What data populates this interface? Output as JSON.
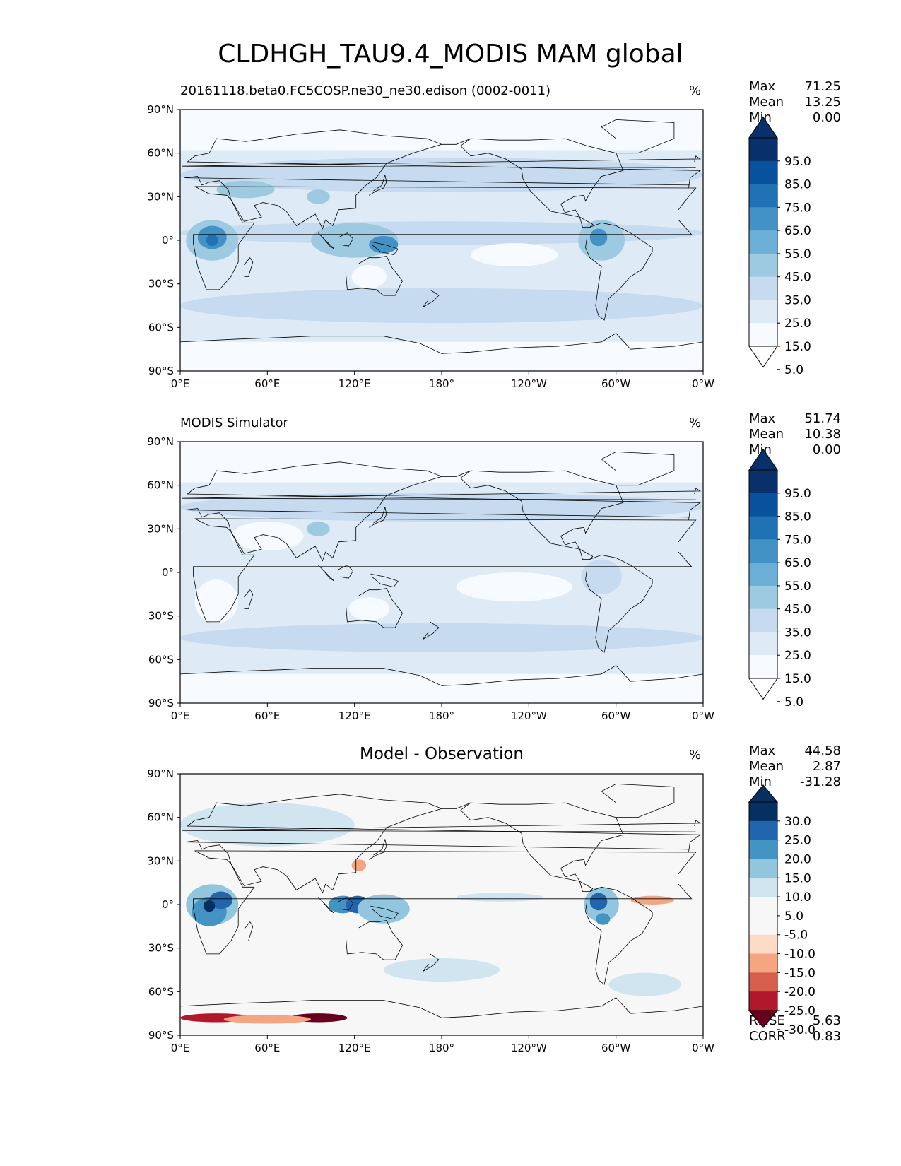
{
  "title": "CLDHGH_TAU9.4_MODIS MAM global",
  "panels": [
    {
      "title": "20161118.beta0.FC5COSP.ne30_ne30.edison (0002-0011)",
      "unit": "%",
      "stats": {
        "max_label": "Max",
        "max": "71.25",
        "mean_label": "Mean",
        "mean": "13.25",
        "min_label": "Min",
        "min": "0.00"
      },
      "colorbar_labels": [
        "95.0",
        "85.0",
        "75.0",
        "65.0",
        "55.0",
        "45.0",
        "35.0",
        "25.0",
        "15.0",
        "5.0"
      ]
    },
    {
      "title": "MODIS Simulator",
      "unit": "%",
      "stats": {
        "max_label": "Max",
        "max": "51.74",
        "mean_label": "Mean",
        "mean": "10.38",
        "min_label": "Min",
        "min": "0.00"
      },
      "colorbar_labels": [
        "95.0",
        "85.0",
        "75.0",
        "65.0",
        "55.0",
        "45.0",
        "35.0",
        "25.0",
        "15.0",
        "5.0"
      ]
    },
    {
      "title": "Model - Observation",
      "unit": "%",
      "stats": {
        "max_label": "Max",
        "max": "44.58",
        "mean_label": "Mean",
        "mean": "2.87",
        "min_label": "Min",
        "min": "-31.28"
      },
      "colorbar_labels": [
        "30.0",
        "25.0",
        "20.0",
        "15.0",
        "10.0",
        "5.0",
        "-5.0",
        "-10.0",
        "-15.0",
        "-20.0",
        "-25.0",
        "-30.0"
      ],
      "rmse_label": "RMSE",
      "rmse": "5.63",
      "corr_label": "CORR",
      "corr": "0.83"
    }
  ],
  "axes": {
    "lat_ticks": [
      "90°N",
      "60°N",
      "30°N",
      "0°",
      "30°S",
      "60°S",
      "90°S"
    ],
    "lon_ticks": [
      "0°E",
      "60°E",
      "120°E",
      "180°",
      "120°W",
      "60°W",
      "0°W"
    ]
  },
  "colors": {
    "seq": [
      "#f7fbff",
      "#deebf7",
      "#c6dbef",
      "#9ecae1",
      "#6baed6",
      "#4292c6",
      "#2171b5",
      "#08519c",
      "#08306b"
    ],
    "div": [
      "#67001f",
      "#b2182b",
      "#d6604d",
      "#f4a582",
      "#fddbc7",
      "#f7f7f7",
      "#d1e5f0",
      "#92c5de",
      "#4393c3",
      "#2166ac",
      "#053061"
    ]
  },
  "chart_data": [
    {
      "type": "heatmap",
      "title": "20161118.beta0.FC5COSP.ne30_ne30.edison (0002-0011)",
      "units": "%",
      "xlim": [
        0,
        360
      ],
      "ylim": [
        -90,
        90
      ],
      "levels": [
        0,
        5,
        15,
        25,
        35,
        45,
        55,
        65,
        75,
        85,
        95,
        100
      ],
      "zonal_band_values": [
        {
          "lat": [
            60,
            90
          ],
          "value": 5
        },
        {
          "lat": [
            30,
            60
          ],
          "value": 15
        },
        {
          "lat": [
            -15,
            15
          ],
          "value": 20
        },
        {
          "lat": [
            -60,
            -30
          ],
          "value": 18
        },
        {
          "lat": [
            -90,
            -65
          ],
          "value": 5
        }
      ],
      "features": [
        {
          "name": "Central Africa",
          "lon": 22,
          "lat": 0,
          "value": 55
        },
        {
          "name": "Maritime Continent",
          "lon": 125,
          "lat": 0,
          "value": 45
        },
        {
          "name": "New Guinea",
          "lon": 142,
          "lat": -4,
          "value": 60
        },
        {
          "name": "Amazon",
          "lon": 290,
          "lat": 0,
          "value": 55
        }
      ],
      "stats": {
        "max": 71.25,
        "mean": 13.25,
        "min": 0.0
      }
    },
    {
      "type": "heatmap",
      "title": "MODIS Simulator",
      "units": "%",
      "xlim": [
        0,
        360
      ],
      "ylim": [
        -90,
        90
      ],
      "levels": [
        0,
        5,
        15,
        25,
        35,
        45,
        55,
        65,
        75,
        85,
        95,
        100
      ],
      "zonal_band_values": [
        {
          "lat": [
            60,
            90
          ],
          "value": 5
        },
        {
          "lat": [
            30,
            60
          ],
          "value": 15
        },
        {
          "lat": [
            -15,
            15
          ],
          "value": 15
        },
        {
          "lat": [
            -60,
            -30
          ],
          "value": 18
        },
        {
          "lat": [
            -90,
            -65
          ],
          "value": 5
        }
      ],
      "features": [
        {
          "name": "Amazon",
          "lon": 290,
          "lat": -3,
          "value": 30
        },
        {
          "name": "Tibet",
          "lon": 95,
          "lat": 30,
          "value": 30
        }
      ],
      "stats": {
        "max": 51.74,
        "mean": 10.38,
        "min": 0.0
      }
    },
    {
      "type": "heatmap",
      "title": "Model - Observation",
      "units": "%",
      "xlim": [
        0,
        360
      ],
      "ylim": [
        -90,
        90
      ],
      "levels": [
        -35,
        -30,
        -25,
        -20,
        -15,
        -10,
        -5,
        5,
        10,
        15,
        20,
        25,
        30,
        35
      ],
      "features": [
        {
          "name": "Central Africa",
          "lon": 22,
          "lat": 0,
          "value": 35
        },
        {
          "name": "New Guinea",
          "lon": 140,
          "lat": -3,
          "value": 35
        },
        {
          "name": "Maritime Continent",
          "lon": 112,
          "lat": 0,
          "value": 30
        },
        {
          "name": "Amazon",
          "lon": 288,
          "lat": 0,
          "value": 30
        },
        {
          "name": "Tropical Atlantic",
          "lon": 325,
          "lat": 3,
          "value": -12
        },
        {
          "name": "East China Sea",
          "lon": 123,
          "lat": 27,
          "value": -10
        },
        {
          "name": "Antarctic 90E",
          "lon": 95,
          "lat": -78,
          "value": -25
        },
        {
          "name": "Antarctic 25E",
          "lon": 25,
          "lat": -78,
          "value": -20
        }
      ],
      "stats": {
        "max": 44.58,
        "mean": 2.87,
        "min": -31.28,
        "rmse": 5.63,
        "corr": 0.83
      }
    }
  ]
}
